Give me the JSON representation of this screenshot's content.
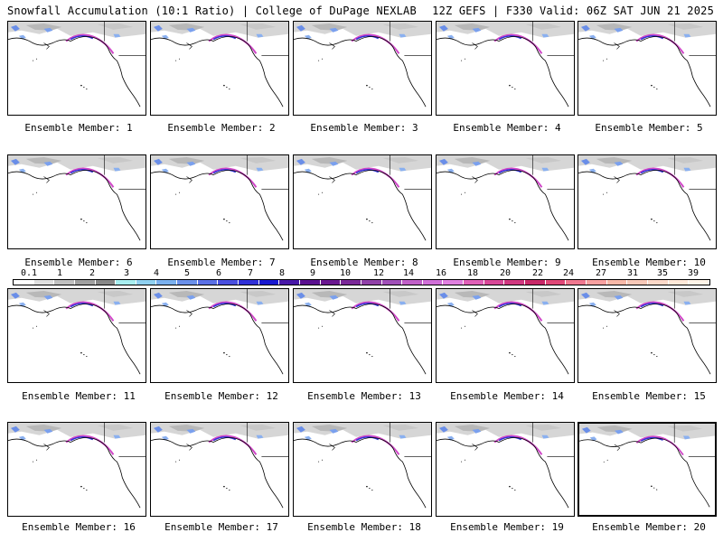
{
  "header": {
    "left": "Snowfall Accumulation (10:1 Ratio) | College of DuPage NEXLAB",
    "right": "12Z GEFS | F330 Valid: 06Z SAT JUN 21 2025"
  },
  "members": [
    "Ensemble Member: 1",
    "Ensemble Member: 2",
    "Ensemble Member: 3",
    "Ensemble Member: 4",
    "Ensemble Member: 5",
    "Ensemble Member: 6",
    "Ensemble Member: 7",
    "Ensemble Member: 8",
    "Ensemble Member: 9",
    "Ensemble Member: 10",
    "Ensemble Member: 11",
    "Ensemble Member: 12",
    "Ensemble Member: 13",
    "Ensemble Member: 14",
    "Ensemble Member: 15",
    "Ensemble Member: 16",
    "Ensemble Member: 17",
    "Ensemble Member: 18",
    "Ensemble Member: 19",
    "Ensemble Member: 20"
  ],
  "colorbar": {
    "labels": [
      "0.1",
      "1",
      "2",
      "3",
      "4",
      "5",
      "6",
      "7",
      "8",
      "9",
      "10",
      "12",
      "14",
      "16",
      "18",
      "20",
      "22",
      "24",
      "27",
      "31",
      "35",
      "39"
    ],
    "colors": [
      "#ffffff",
      "#e0e0e0",
      "#c0c0c0",
      "#a0a0a0",
      "#888888",
      "#a8eef0",
      "#8fd0f0",
      "#7ab0ee",
      "#6a90ea",
      "#5a70e6",
      "#4a50e0",
      "#3030d8",
      "#1818d0",
      "#4818a8",
      "#5a1090",
      "#6a1890",
      "#7a2898",
      "#9040a8",
      "#a050b8",
      "#c060c8",
      "#d070d8",
      "#e080e0",
      "#e060b8",
      "#d84898",
      "#d03880",
      "#c82868",
      "#e04878",
      "#f07890",
      "#f8a0a0",
      "#f8b8a8",
      "#f8c8b8",
      "#fcd8c8",
      "#ffe8d8",
      "#fff4e8"
    ]
  }
}
